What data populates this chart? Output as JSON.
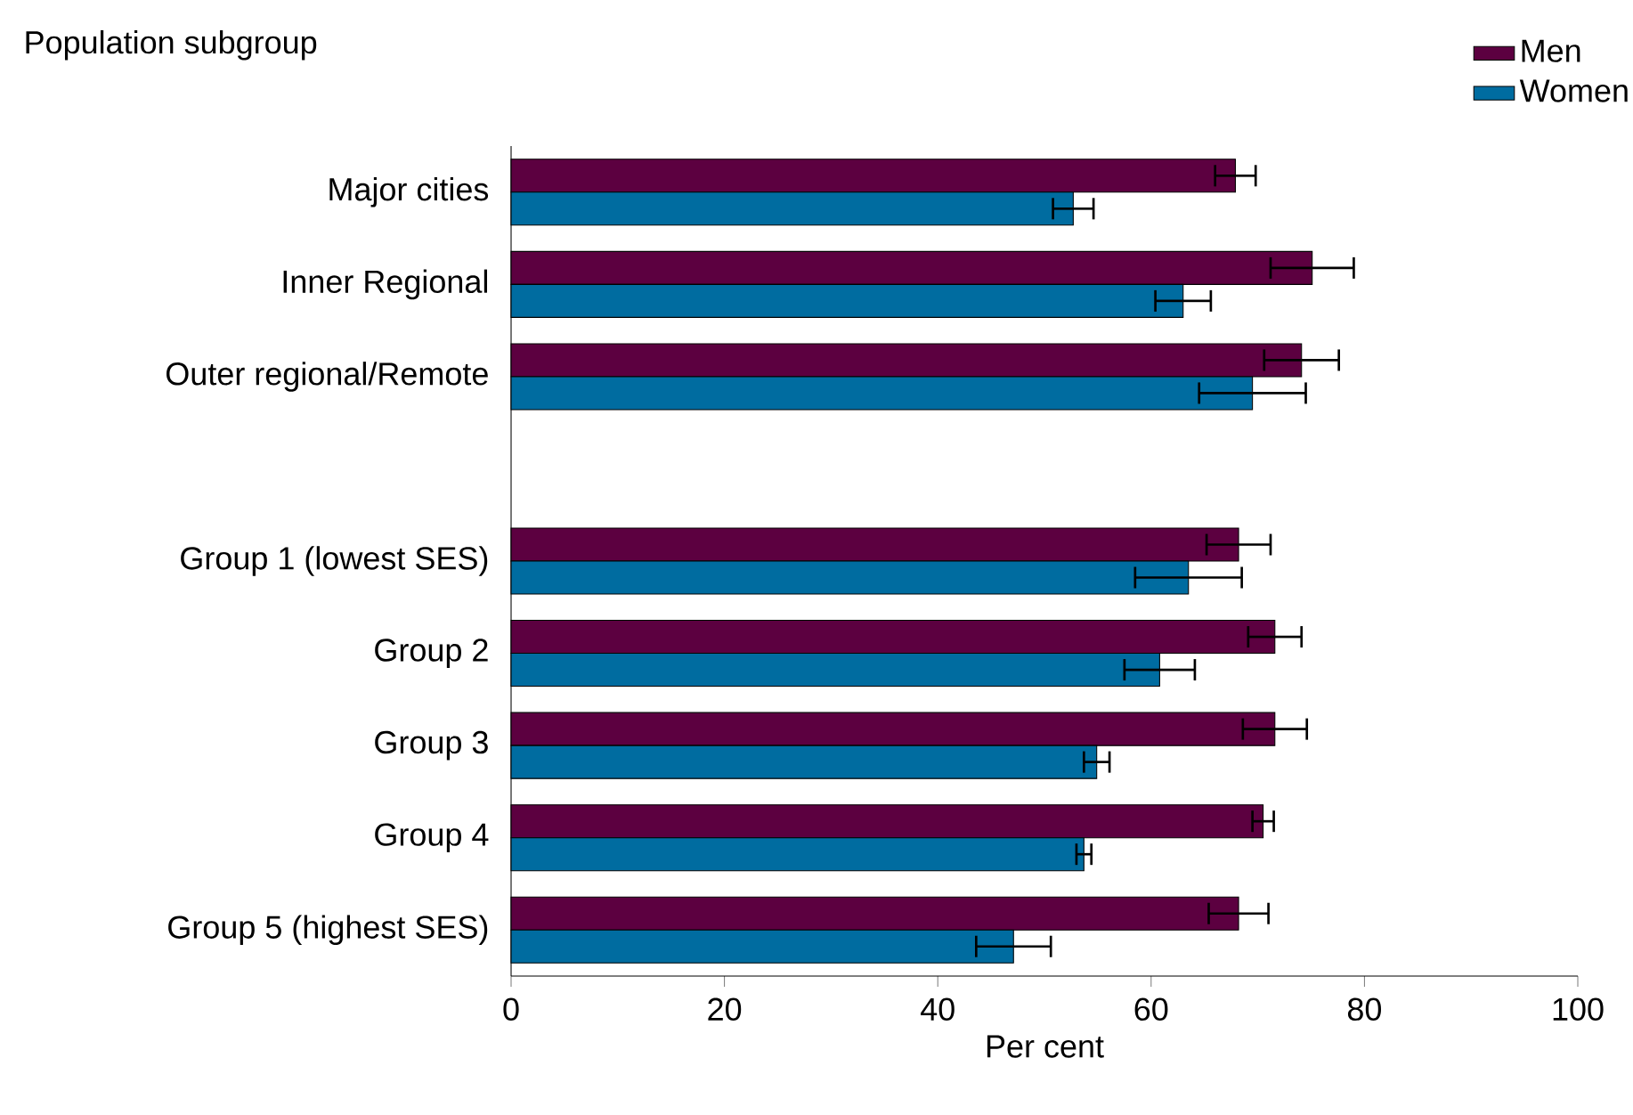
{
  "chart_data": {
    "type": "bar",
    "orientation": "horizontal",
    "ylabel": "Population subgroup",
    "xlabel": "Per cent",
    "categories": [
      "Major cities",
      "Inner Regional",
      "Outer regional/Remote",
      null,
      "Group 1 (lowest SES)",
      "Group 2",
      "Group 3",
      "Group 4",
      "Group 5 (highest SES)"
    ],
    "series": [
      {
        "name": "Men",
        "color": "#5c0040",
        "values": [
          67.9,
          75.1,
          74.1,
          null,
          68.2,
          71.6,
          71.6,
          70.5,
          68.2
        ],
        "errors": [
          1.9,
          3.9,
          3.5,
          null,
          3,
          2.5,
          3,
          1,
          2.8
        ]
      },
      {
        "name": "Women",
        "color": "#006ca0",
        "values": [
          52.7,
          63.0,
          69.5,
          null,
          63.5,
          60.8,
          54.9,
          53.7,
          47.1
        ],
        "errors": [
          1.9,
          2.6,
          5,
          null,
          5,
          3.3,
          1.2,
          0.7,
          3.5
        ]
      }
    ],
    "xlim": [
      0,
      100
    ],
    "xticks": [
      0,
      20,
      40,
      60,
      80,
      100
    ],
    "legend": "top right",
    "grid": false
  }
}
